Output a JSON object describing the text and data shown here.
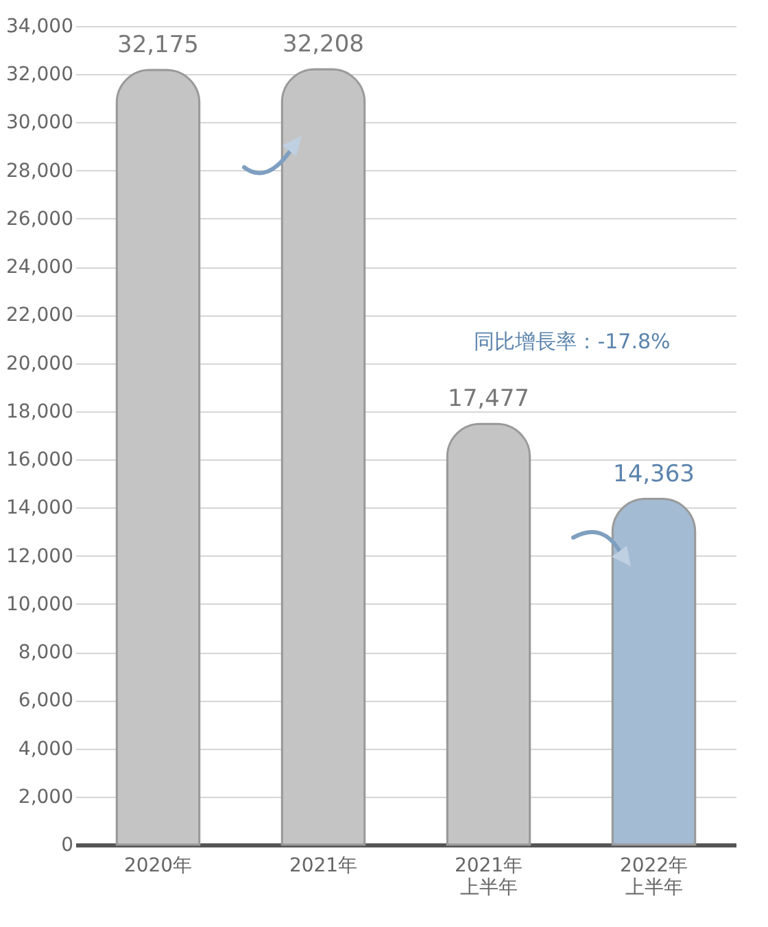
{
  "chart_data": {
    "type": "bar",
    "categories": [
      "2020年",
      "2021年",
      "2021年上半年",
      "2022年上半年"
    ],
    "values": [
      32175,
      32208,
      17477,
      14363
    ],
    "value_labels": [
      "32,175",
      "32,208",
      "17,477",
      "14,363"
    ],
    "colors": [
      "#c4c4c4",
      "#c4c4c4",
      "#c4c4c4",
      "#a3bbd3"
    ],
    "ylim": [
      0,
      34000
    ],
    "yticks": [
      0,
      {
        "value": 2000,
        "label": "2,000"
      },
      {
        "value": 4000,
        "label": "4,000"
      },
      {
        "value": 6000,
        "label": "6,000"
      },
      {
        "value": 8000,
        "label": "8,000"
      },
      {
        "value": 10000,
        "label": "10,000"
      },
      {
        "value": 12000,
        "label": "12,000"
      },
      {
        "value": 14000,
        "label": "14,000"
      },
      {
        "value": 16000,
        "label": "16,000"
      },
      {
        "value": 18000,
        "label": "18,000"
      },
      {
        "value": 20000,
        "label": "20,000"
      },
      {
        "value": 22000,
        "label": "22,000"
      },
      {
        "value": 24000,
        "label": "24,000"
      },
      {
        "value": 26000,
        "label": "26,000"
      },
      {
        "value": 28000,
        "label": "28,000"
      },
      {
        "value": 30000,
        "label": "30,000"
      },
      {
        "value": 32000,
        "label": "32,000"
      },
      {
        "value": 34000,
        "label": "34,000"
      }
    ],
    "grid": "y",
    "annotations": [
      "同比增長率：-17.8%"
    ]
  }
}
